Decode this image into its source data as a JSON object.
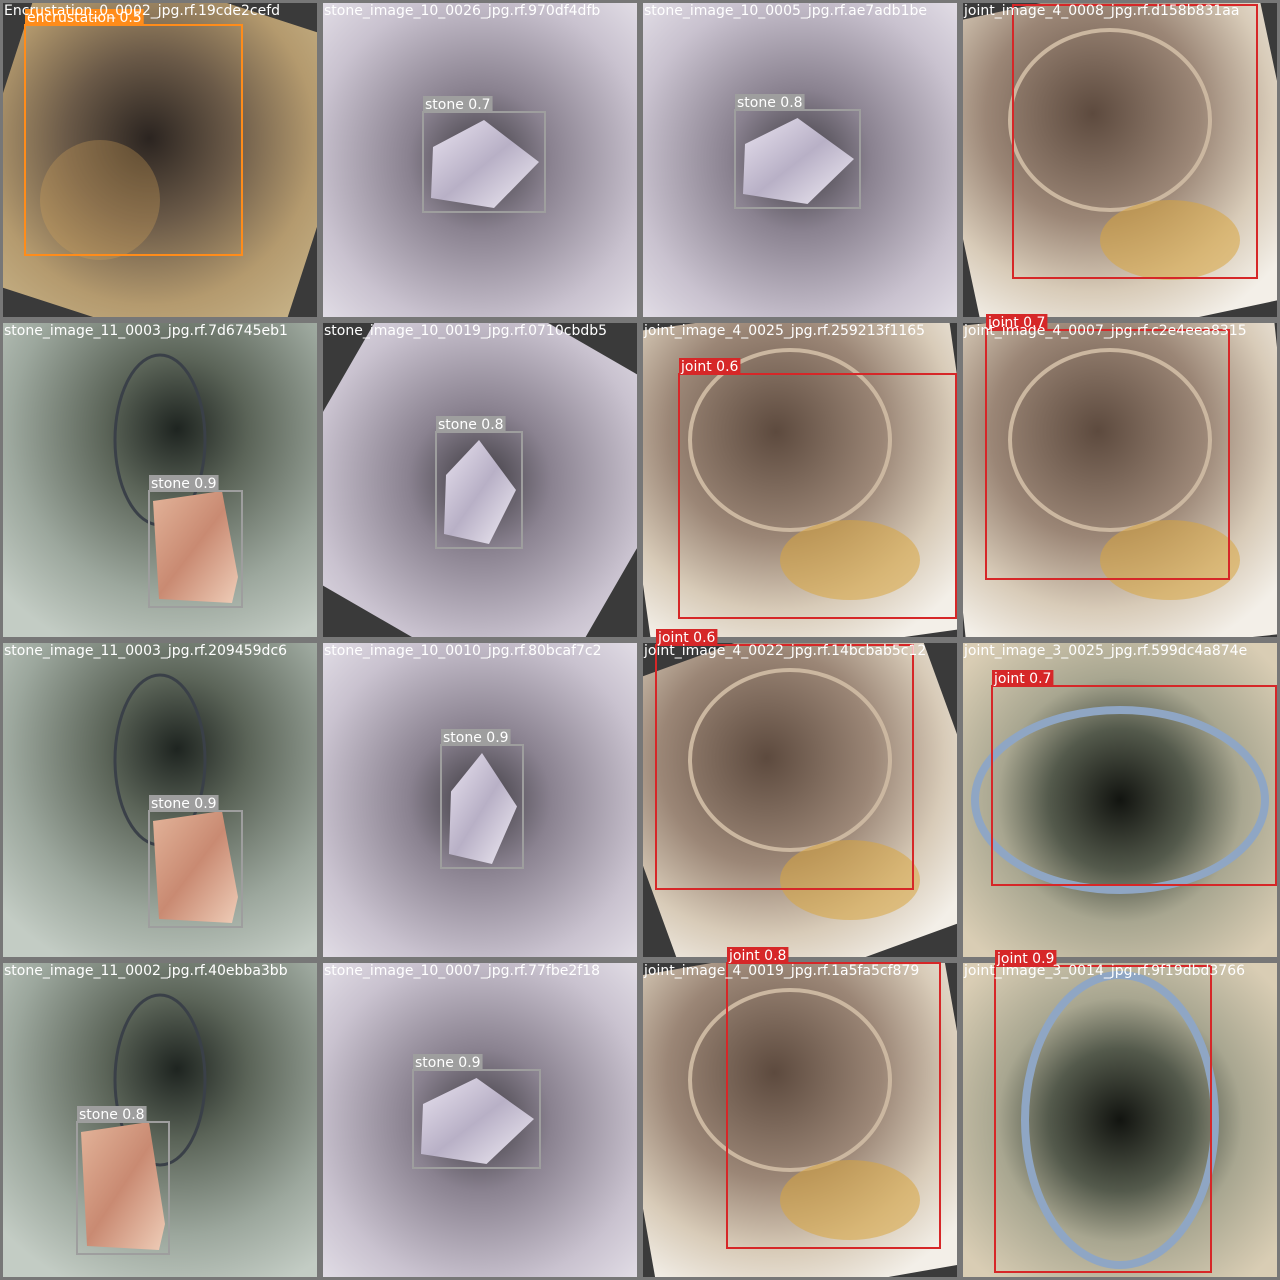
{
  "tiles": [
    {
      "filename": "Encrustation_0_0002_jpg.rf.19cde2cefd",
      "detections": [
        {
          "label": "encrustation 0.5",
          "color": "#ff8c1a"
        }
      ]
    },
    {
      "filename": "stone_image_10_0026_jpg.rf.970df4dfb",
      "detections": [
        {
          "label": "stone 0.7",
          "color": "#9e9e9e"
        }
      ]
    },
    {
      "filename": "stone_image_10_0005_jpg.rf.ae7adb1be",
      "detections": [
        {
          "label": "stone 0.8",
          "color": "#9e9e9e"
        }
      ]
    },
    {
      "filename": "joint_image_4_0008_jpg.rf.d158b831aa",
      "detections": [
        {
          "color": "#d62728"
        }
      ]
    },
    {
      "filename": "stone_image_11_0003_jpg.rf.7d6745eb1",
      "detections": [
        {
          "label": "stone 0.9",
          "color": "#9e9e9e"
        }
      ]
    },
    {
      "filename": "stone_image_10_0019_jpg.rf.0710cbdb5",
      "detections": [
        {
          "label": "stone 0.8",
          "color": "#9e9e9e"
        }
      ]
    },
    {
      "filename": "joint_image_4_0025_jpg.rf.259213f1165",
      "detections": [
        {
          "label": "joint 0.6",
          "color": "#d62728"
        }
      ]
    },
    {
      "filename": "joint_image_4_0007_jpg.rf.c2e4eea8315",
      "detections": [
        {
          "label": "joint 0.7",
          "color": "#d62728"
        }
      ]
    },
    {
      "filename": "stone_image_11_0003_jpg.rf.209459dc6",
      "detections": [
        {
          "label": "stone 0.9",
          "color": "#9e9e9e"
        }
      ]
    },
    {
      "filename": "stone_image_10_0010_jpg.rf.80bcaf7c2",
      "detections": [
        {
          "label": "stone 0.9",
          "color": "#9e9e9e"
        }
      ]
    },
    {
      "filename": "joint_image_4_0022_jpg.rf.14bcbab5c12",
      "detections": [
        {
          "label": "joint 0.6",
          "color": "#d62728"
        }
      ]
    },
    {
      "filename": "joint_image_3_0025_jpg.rf.599dc4a874e",
      "detections": [
        {
          "label": "joint 0.7",
          "color": "#d62728"
        }
      ]
    },
    {
      "filename": "stone_image_11_0002_jpg.rf.40ebba3bb",
      "detections": [
        {
          "label": "stone 0.8",
          "color": "#9e9e9e"
        }
      ]
    },
    {
      "filename": "stone_image_10_0007_jpg.rf.77fbe2f18",
      "detections": [
        {
          "label": "stone 0.9",
          "color": "#9e9e9e"
        }
      ]
    },
    {
      "filename": "joint_image_4_0019_jpg.rf.1a5fa5cf879",
      "detections": [
        {
          "label": "joint 0.8",
          "color": "#d62728"
        }
      ]
    },
    {
      "filename": "joint_image_3_0014_jpg.rf.9f19dbd3766",
      "detections": [
        {
          "label": "joint 0.9",
          "color": "#d62728"
        }
      ]
    }
  ]
}
